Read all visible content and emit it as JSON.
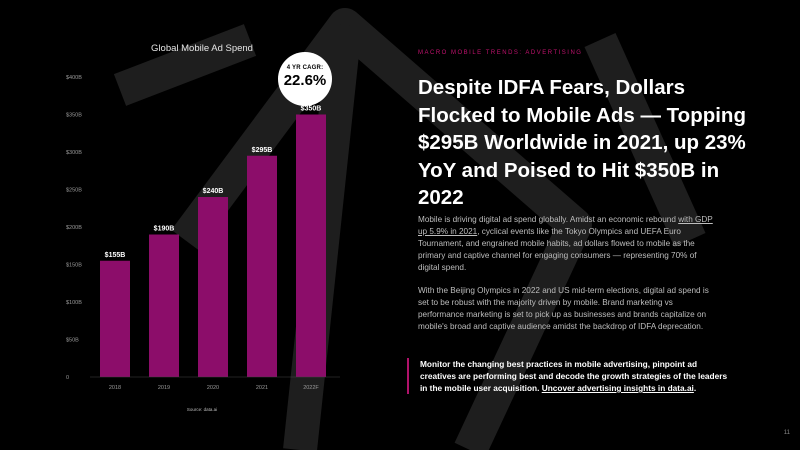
{
  "chart_data": {
    "type": "bar",
    "title": "Global Mobile Ad Spend",
    "categories": [
      "2018",
      "2019",
      "2020",
      "2021",
      "2022F"
    ],
    "values": [
      155,
      190,
      240,
      295,
      350
    ],
    "data_labels": [
      "$155B",
      "$190B",
      "$240B",
      "$295B",
      "$350B"
    ],
    "yticks": [
      0,
      50,
      100,
      150,
      200,
      250,
      300,
      350,
      400
    ],
    "ytick_labels": [
      "0",
      "$50B",
      "$100B",
      "$150B",
      "$200B",
      "$250B",
      "$300B",
      "$350B",
      "$400B"
    ],
    "ylim": [
      0,
      400
    ],
    "grid": false,
    "bar_color": "#8c0d6a",
    "source": "Source: data.ai"
  },
  "cagr": {
    "label": "4 YR CAGR:",
    "value": "22.6%"
  },
  "eyebrow": "MACRO MOBILE TRENDS: ADVERTISING",
  "headline": "Despite IDFA Fears, Dollars Flocked to Mobile Ads — Topping $295B Worldwide in 2021, up 23% YoY and Poised to Hit $350B in 2022",
  "para1": {
    "lead": "Mobile is driving digital ad spend globally. Amidst an economic rebound ",
    "link": "with GDP up 5.9% in 2021",
    "rest": ", cyclical events like the Tokyo Olympics and UEFA Euro Tournament, and engrained mobile habits, ad dollars flowed to mobile as the primary and captive channel for engaging consumers — representing 70% of digital spend."
  },
  "para2": "With the Beijing Olympics in 2022 and US mid-term elections, digital ad spend is set to be robust with the majority driven by mobile. Brand marketing vs performance marketing is set to pick up as businesses and brands capitalize on mobile's broad and captive audience amidst the backdrop of IDFA deprecation.",
  "callout": {
    "text": "Monitor the changing best practices in mobile advertising, pinpoint ad creatives are performing best and decode the growth strategies of the leaders in the mobile user acquisition. ",
    "link": "Uncover advertising insights in data.ai",
    "end": "."
  },
  "page_number": "11",
  "colors": {
    "accent": "#c0126e",
    "bar": "#8c0d6a",
    "background": "#000000"
  }
}
